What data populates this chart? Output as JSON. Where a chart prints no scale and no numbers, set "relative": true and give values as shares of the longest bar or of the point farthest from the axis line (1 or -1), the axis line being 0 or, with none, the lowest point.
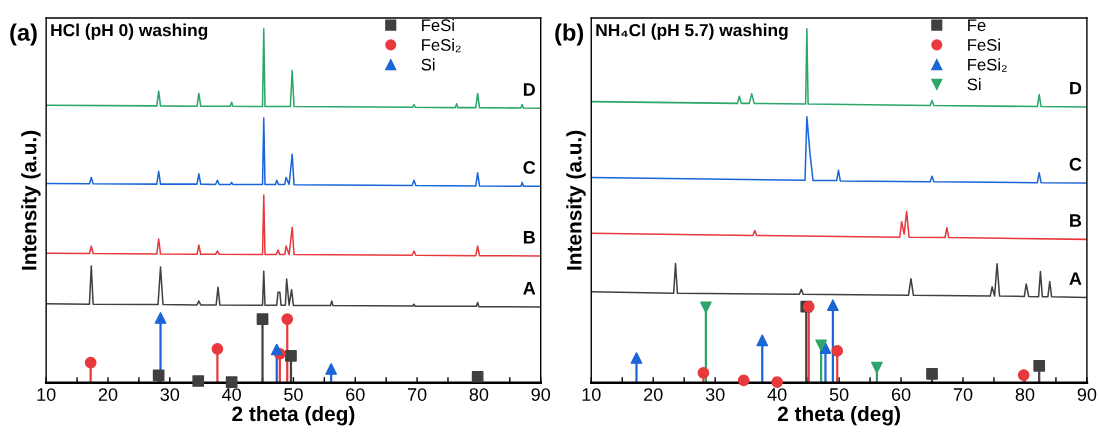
{
  "chart_data": [
    {
      "type": "line",
      "relative": true,
      "title": "(a)",
      "subtitle": "HCl (pH 0) washing",
      "xlabel": "2 theta (deg)",
      "ylabel": "Intensity (a.u.)",
      "xlim": [
        10,
        90
      ],
      "xticks": [
        10,
        {
          "value": 15,
          "label": null
        },
        20,
        {
          "value": 25,
          "label": null
        },
        30,
        {
          "value": 35,
          "label": null
        },
        40,
        {
          "value": 45,
          "label": null
        },
        50,
        {
          "value": 55,
          "label": null
        },
        60,
        {
          "value": 65,
          "label": null
        },
        70,
        {
          "value": 75,
          "label": null
        },
        80,
        {
          "value": 85,
          "label": null
        },
        90
      ],
      "tick_labels": "x",
      "grid": false,
      "legend": "top right",
      "series": [
        {
          "name": "A",
          "color": "#404040",
          "x": [
            10,
            17.0,
            17.3,
            17.6,
            28.1,
            28.5,
            28.9,
            34.4,
            34.7,
            35.0,
            37.5,
            37.8,
            38.1,
            45.0,
            45.2,
            45.4,
            47.3,
            47.5,
            47.8,
            48.0,
            48.7,
            48.9,
            49.3,
            49.7,
            50.0,
            56.0,
            56.2,
            56.4,
            69.3,
            69.5,
            69.7,
            79.6,
            79.8,
            80.0,
            90
          ],
          "values": [
            0.223,
            0.222,
            0.33,
            0.222,
            0.221,
            0.327,
            0.221,
            0.22,
            0.231,
            0.22,
            0.22,
            0.27,
            0.22,
            0.219,
            0.315,
            0.219,
            0.219,
            0.256,
            0.256,
            0.219,
            0.219,
            0.293,
            0.219,
            0.263,
            0.218,
            0.218,
            0.231,
            0.218,
            0.217,
            0.222,
            0.216,
            0.216,
            0.227,
            0.215,
            0.214
          ]
        },
        {
          "name": "B",
          "color": "#e8393c",
          "x": [
            10,
            17.0,
            17.3,
            17.6,
            27.9,
            28.2,
            28.5,
            34.4,
            34.7,
            35.0,
            37.4,
            37.7,
            38.0,
            45.0,
            45.2,
            45.4,
            47.2,
            47.5,
            47.8,
            48.6,
            48.8,
            49.3,
            49.8,
            50.1,
            69.2,
            69.5,
            69.8,
            79.5,
            79.8,
            80.1,
            90
          ],
          "values": [
            0.366,
            0.365,
            0.386,
            0.365,
            0.364,
            0.406,
            0.364,
            0.363,
            0.389,
            0.363,
            0.363,
            0.372,
            0.363,
            0.362,
            0.53,
            0.362,
            0.362,
            0.375,
            0.362,
            0.362,
            0.386,
            0.362,
            0.439,
            0.362,
            0.36,
            0.372,
            0.36,
            0.359,
            0.386,
            0.359,
            0.358
          ]
        },
        {
          "name": "C",
          "color": "#1a66d9",
          "x": [
            10,
            17.0,
            17.3,
            17.6,
            27.9,
            28.2,
            28.5,
            34.4,
            34.7,
            35.0,
            37.4,
            37.7,
            38.0,
            39.8,
            40.0,
            40.2,
            45.0,
            45.2,
            45.4,
            47.1,
            47.3,
            47.6,
            48.6,
            48.8,
            49.3,
            49.8,
            50.1,
            69.2,
            69.5,
            69.8,
            79.5,
            79.8,
            80.1,
            86.8,
            87.0,
            87.2,
            90
          ],
          "values": [
            0.563,
            0.562,
            0.58,
            0.562,
            0.561,
            0.597,
            0.561,
            0.561,
            0.59,
            0.561,
            0.56,
            0.572,
            0.56,
            0.56,
            0.566,
            0.56,
            0.56,
            0.748,
            0.56,
            0.56,
            0.572,
            0.56,
            0.56,
            0.58,
            0.56,
            0.645,
            0.559,
            0.557,
            0.572,
            0.557,
            0.556,
            0.593,
            0.556,
            0.555,
            0.566,
            0.555,
            0.555
          ]
        },
        {
          "name": "D",
          "color": "#2ca66a",
          "x": [
            10,
            27.9,
            28.2,
            28.5,
            34.4,
            34.7,
            35.0,
            39.8,
            40.0,
            40.2,
            45.0,
            45.2,
            45.4,
            49.5,
            49.8,
            50.1,
            69.3,
            69.5,
            69.7,
            76.2,
            76.4,
            76.6,
            79.5,
            79.8,
            80.1,
            86.8,
            87.0,
            87.2,
            90
          ],
          "values": [
            0.784,
            0.782,
            0.824,
            0.782,
            0.781,
            0.817,
            0.781,
            0.781,
            0.792,
            0.781,
            0.78,
            1.0,
            0.78,
            0.78,
            0.882,
            0.78,
            0.778,
            0.786,
            0.778,
            0.777,
            0.788,
            0.777,
            0.777,
            0.817,
            0.777,
            0.776,
            0.786,
            0.776,
            0.775
          ]
        },
        {
          "type": "lollipop",
          "name": "FeSi",
          "color": "#404040",
          "marker": "square",
          "x": [
            28.2,
            34.6,
            40.0,
            45.0,
            49.6,
            79.8
          ],
          "values": [
            0.021,
            0.005,
            0.002,
            0.18,
            0.076,
            0.017
          ]
        },
        {
          "type": "lollipop",
          "name": "FeSi₂",
          "color": "#e8393c",
          "marker": "circle",
          "x": [
            17.2,
            37.7,
            47.8,
            49.0
          ],
          "values": [
            0.057,
            0.096,
            0.082,
            0.18
          ]
        },
        {
          "type": "lollipop",
          "name": "Si",
          "color": "#1a66d9",
          "marker": "triangle",
          "x": [
            28.5,
            47.3,
            56.1
          ],
          "values": [
            0.183,
            0.094,
            0.039
          ]
        }
      ]
    },
    {
      "type": "line",
      "relative": true,
      "title": "(b)",
      "subtitle": "NH₄Cl (pH 5.7) washing",
      "xlabel": "2 theta (deg)",
      "ylabel": "Intensity (a.u.)",
      "xlim": [
        10,
        90
      ],
      "xticks": [
        10,
        {
          "value": 15,
          "label": null
        },
        20,
        {
          "value": 25,
          "label": null
        },
        30,
        {
          "value": 35,
          "label": null
        },
        40,
        {
          "value": 45,
          "label": null
        },
        50,
        {
          "value": 55,
          "label": null
        },
        60,
        {
          "value": 65,
          "label": null
        },
        70,
        {
          "value": 75,
          "label": null
        },
        80,
        {
          "value": 85,
          "label": null
        },
        90
      ],
      "tick_labels": "x",
      "grid": false,
      "legend": "top right",
      "series": [
        {
          "name": "A",
          "color": "#404040",
          "x": [
            10,
            23.3,
            23.6,
            23.9,
            43.6,
            43.9,
            44.2,
            61.2,
            61.6,
            62.0,
            74.4,
            74.7,
            75.1,
            75.5,
            75.9,
            79.9,
            80.2,
            80.6,
            82.2,
            82.5,
            82.8,
            83.7,
            84.0,
            84.3,
            90
          ],
          "values": [
            0.257,
            0.253,
            0.337,
            0.253,
            0.25,
            0.264,
            0.25,
            0.247,
            0.294,
            0.247,
            0.245,
            0.271,
            0.245,
            0.336,
            0.245,
            0.244,
            0.279,
            0.244,
            0.243,
            0.314,
            0.243,
            0.243,
            0.286,
            0.243,
            0.241
          ]
        },
        {
          "name": "B",
          "color": "#e8393c",
          "x": [
            10,
            36.1,
            36.4,
            36.7,
            59.8,
            60.1,
            60.5,
            60.9,
            61.3,
            67.1,
            67.4,
            67.7,
            90
          ],
          "values": [
            0.422,
            0.416,
            0.43,
            0.416,
            0.411,
            0.455,
            0.42,
            0.484,
            0.411,
            0.41,
            0.438,
            0.41,
            0.405
          ]
        },
        {
          "name": "C",
          "color": "#1a66d9",
          "x": [
            10,
            44.5,
            44.8,
            45.3,
            45.8,
            49.6,
            49.9,
            50.2,
            64.7,
            65.0,
            65.3,
            82.0,
            82.3,
            82.6,
            90
          ],
          "values": [
            0.58,
            0.572,
            0.751,
            0.648,
            0.571,
            0.571,
            0.6,
            0.57,
            0.568,
            0.583,
            0.568,
            0.565,
            0.593,
            0.565,
            0.564
          ]
        },
        {
          "name": "D",
          "color": "#2ca66a",
          "x": [
            10,
            33.6,
            33.9,
            34.2,
            35.5,
            35.9,
            36.3,
            44.6,
            44.8,
            45.0,
            64.7,
            65.0,
            65.3,
            82.0,
            82.3,
            82.6,
            90
          ],
          "values": [
            0.794,
            0.789,
            0.809,
            0.789,
            0.789,
            0.816,
            0.789,
            0.787,
            1.0,
            0.787,
            0.783,
            0.797,
            0.783,
            0.78,
            0.814,
            0.78,
            0.779
          ]
        },
        {
          "type": "lollipop",
          "name": "Fe",
          "color": "#404040",
          "marker": "square",
          "x": [
            44.7,
            65.0,
            82.3
          ],
          "values": [
            0.215,
            0.025,
            0.048
          ]
        },
        {
          "type": "lollipop",
          "name": "FeSi",
          "color": "#e8393c",
          "marker": "circle",
          "x": [
            28.1,
            34.6,
            40.0,
            45.1,
            49.7,
            79.8
          ],
          "values": [
            0.028,
            0.007,
            0.002,
            0.215,
            0.09,
            0.022
          ]
        },
        {
          "type": "lollipop",
          "name": "FeSi₂",
          "color": "#1a66d9",
          "marker": "triangle",
          "x": [
            17.3,
            37.6,
            47.8,
            49.0
          ],
          "values": [
            0.07,
            0.12,
            0.098,
            0.219
          ]
        },
        {
          "type": "lollipop",
          "name": "Si",
          "color": "#2ca66a",
          "marker": "triangle_down",
          "x": [
            28.5,
            47.1,
            56.1
          ],
          "values": [
            0.213,
            0.106,
            0.043
          ]
        }
      ]
    }
  ]
}
